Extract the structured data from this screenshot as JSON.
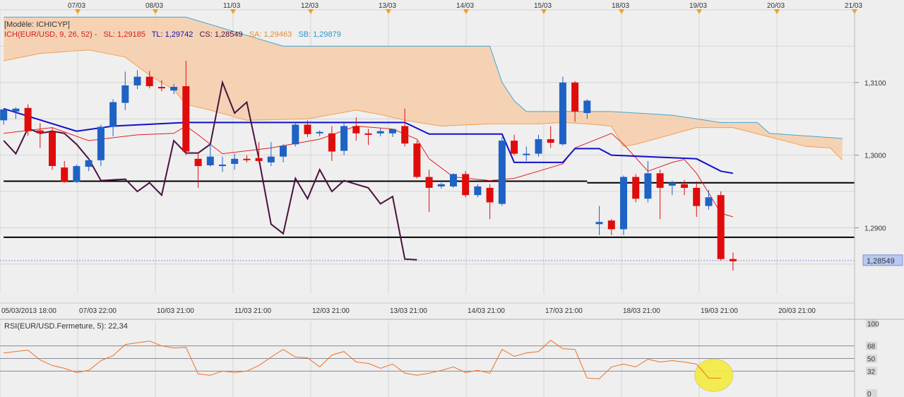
{
  "colors": {
    "background": "#eeeeee",
    "grid": "#d4d4d4",
    "bull": "#1e62c4",
    "bear": "#e00c0c",
    "tenkan": "#e02020",
    "kijun": "#1010cc",
    "chikou": "#4a1240",
    "span_a": "#f2a050",
    "span_b": "#40a8d0",
    "cloud": "#f5d0b0",
    "rsi": "#f07020",
    "highlight": "#f4ec40",
    "level": "#000000"
  },
  "header": {
    "model": "[Modèle: ICHICYP]",
    "ich": "ICH(EUR/USD, 9, 26, 52) -",
    "sl": "SL: 1,29185",
    "tl": "TL: 1,29742",
    "cs": "CS: 1,28549",
    "sa": "SA: 1,29463",
    "sb": "SB: 1,29879"
  },
  "top_dates": [
    "07/03",
    "08/03",
    "11/03",
    "12/03",
    "13/03",
    "14/03",
    "15/03",
    "18/03",
    "19/03",
    "20/03",
    "21/03"
  ],
  "bottom_dates": [
    "05/03/2013 18:00",
    "07/03 22:00",
    "10/03 21:00",
    "11/03 21:00",
    "12/03 21:00",
    "13/03 21:00",
    "14/03 21:00",
    "17/03 21:00",
    "18/03 21:00",
    "19/03 21:00",
    "20/03 21:00"
  ],
  "price_axis": {
    "ticks": [
      "1,3100",
      "1,3000",
      "1,2900"
    ],
    "last_price": "1,28549",
    "ylim": [
      1.281,
      1.32
    ]
  },
  "rsi": {
    "label": "RSI(EUR/USD.Fermeture, 5): 22,34",
    "ticks": [
      "100",
      "68",
      "50",
      "32",
      "0"
    ],
    "ylim": [
      0,
      100
    ]
  },
  "chart_data": {
    "type": "candlestick",
    "instrument": "EUR/USD",
    "x_slot_range": [
      -0.3,
      70
    ],
    "candles": [
      {
        "o": 1.3048,
        "h": 1.3064,
        "l": 1.3042,
        "c": 1.3063
      },
      {
        "o": 1.306,
        "h": 1.3066,
        "l": 1.305,
        "c": 1.3064
      },
      {
        "o": 1.3065,
        "h": 1.307,
        "l": 1.3027,
        "c": 1.3033
      },
      {
        "o": 1.3034,
        "h": 1.3044,
        "l": 1.301,
        "c": 1.303
      },
      {
        "o": 1.3032,
        "h": 1.3038,
        "l": 1.298,
        "c": 1.2985
      },
      {
        "o": 1.2983,
        "h": 1.2992,
        "l": 1.2962,
        "c": 1.2963
      },
      {
        "o": 1.2963,
        "h": 1.2987,
        "l": 1.2962,
        "c": 1.2985
      },
      {
        "o": 1.2984,
        "h": 1.2995,
        "l": 1.2978,
        "c": 1.2993
      },
      {
        "o": 1.2993,
        "h": 1.3042,
        "l": 1.2985,
        "c": 1.3039
      },
      {
        "o": 1.3039,
        "h": 1.3077,
        "l": 1.3026,
        "c": 1.3073
      },
      {
        "o": 1.3072,
        "h": 1.3115,
        "l": 1.3062,
        "c": 1.3096
      },
      {
        "o": 1.3096,
        "h": 1.3117,
        "l": 1.3091,
        "c": 1.3108
      },
      {
        "o": 1.3108,
        "h": 1.3116,
        "l": 1.3092,
        "c": 1.3095
      },
      {
        "o": 1.3094,
        "h": 1.3103,
        "l": 1.3088,
        "c": 1.3092
      },
      {
        "o": 1.3089,
        "h": 1.3098,
        "l": 1.3084,
        "c": 1.3094
      },
      {
        "o": 1.3095,
        "h": 1.313,
        "l": 1.3,
        "c": 1.3005
      },
      {
        "o": 1.2995,
        "h": 1.3004,
        "l": 1.2955,
        "c": 1.2985
      },
      {
        "o": 1.2986,
        "h": 1.3016,
        "l": 1.2984,
        "c": 1.2998
      },
      {
        "o": 1.2985,
        "h": 1.2998,
        "l": 1.2977,
        "c": 1.2987
      },
      {
        "o": 1.2988,
        "h": 1.3002,
        "l": 1.298,
        "c": 1.2995
      },
      {
        "o": 1.2995,
        "h": 1.3,
        "l": 1.299,
        "c": 1.2994
      },
      {
        "o": 1.2996,
        "h": 1.3018,
        "l": 1.299,
        "c": 1.2992
      },
      {
        "o": 1.299,
        "h": 1.3018,
        "l": 1.2985,
        "c": 1.2998
      },
      {
        "o": 1.2998,
        "h": 1.3015,
        "l": 1.299,
        "c": 1.3013
      },
      {
        "o": 1.3015,
        "h": 1.3045,
        "l": 1.3012,
        "c": 1.3042
      },
      {
        "o": 1.3042,
        "h": 1.3048,
        "l": 1.3025,
        "c": 1.3029
      },
      {
        "o": 1.303,
        "h": 1.3034,
        "l": 1.3026,
        "c": 1.3032
      },
      {
        "o": 1.303,
        "h": 1.304,
        "l": 1.2992,
        "c": 1.3005
      },
      {
        "o": 1.3006,
        "h": 1.3044,
        "l": 1.3,
        "c": 1.304
      },
      {
        "o": 1.304,
        "h": 1.3052,
        "l": 1.302,
        "c": 1.303
      },
      {
        "o": 1.303,
        "h": 1.3036,
        "l": 1.3014,
        "c": 1.3028
      },
      {
        "o": 1.303,
        "h": 1.3037,
        "l": 1.3026,
        "c": 1.3033
      },
      {
        "o": 1.303,
        "h": 1.3036,
        "l": 1.3025,
        "c": 1.3036
      },
      {
        "o": 1.304,
        "h": 1.3064,
        "l": 1.3012,
        "c": 1.3016
      },
      {
        "o": 1.3016,
        "h": 1.302,
        "l": 1.2968,
        "c": 1.297
      },
      {
        "o": 1.297,
        "h": 1.298,
        "l": 1.2922,
        "c": 1.2955
      },
      {
        "o": 1.2957,
        "h": 1.2962,
        "l": 1.2954,
        "c": 1.296
      },
      {
        "o": 1.2957,
        "h": 1.2975,
        "l": 1.2955,
        "c": 1.2974
      },
      {
        "o": 1.2974,
        "h": 1.2978,
        "l": 1.2942,
        "c": 1.2945
      },
      {
        "o": 1.2945,
        "h": 1.296,
        "l": 1.2942,
        "c": 1.2957
      },
      {
        "o": 1.2955,
        "h": 1.296,
        "l": 1.2912,
        "c": 1.2935
      },
      {
        "o": 1.2933,
        "h": 1.3025,
        "l": 1.293,
        "c": 1.302
      },
      {
        "o": 1.302,
        "h": 1.3028,
        "l": 1.3,
        "c": 1.3002
      },
      {
        "o": 1.3001,
        "h": 1.3012,
        "l": 1.2992,
        "c": 1.3002
      },
      {
        "o": 1.3002,
        "h": 1.3028,
        "l": 1.2998,
        "c": 1.3022
      },
      {
        "o": 1.3022,
        "h": 1.304,
        "l": 1.301,
        "c": 1.3017
      },
      {
        "o": 1.3015,
        "h": 1.3108,
        "l": 1.3013,
        "c": 1.31
      },
      {
        "o": 1.31,
        "h": 1.3102,
        "l": 1.3046,
        "c": 1.306
      },
      {
        "o": 1.3058,
        "h": 1.3077,
        "l": 1.305,
        "c": 1.3075
      },
      {
        "o": 1.2905,
        "h": 1.293,
        "l": 1.289,
        "c": 1.2908
      },
      {
        "o": 1.291,
        "h": 1.2912,
        "l": 1.289,
        "c": 1.2898
      },
      {
        "o": 1.2898,
        "h": 1.2972,
        "l": 1.289,
        "c": 1.297
      },
      {
        "o": 1.297,
        "h": 1.2974,
        "l": 1.2935,
        "c": 1.294
      },
      {
        "o": 1.294,
        "h": 1.2992,
        "l": 1.2935,
        "c": 1.2975
      },
      {
        "o": 1.2975,
        "h": 1.298,
        "l": 1.2912,
        "c": 1.2955
      },
      {
        "o": 1.2958,
        "h": 1.2965,
        "l": 1.2945,
        "c": 1.2962
      },
      {
        "o": 1.296,
        "h": 1.2966,
        "l": 1.2945,
        "c": 1.2955
      },
      {
        "o": 1.2955,
        "h": 1.2964,
        "l": 1.2915,
        "c": 1.293
      },
      {
        "o": 1.293,
        "h": 1.2952,
        "l": 1.2925,
        "c": 1.2942
      },
      {
        "o": 1.2945,
        "h": 1.295,
        "l": 1.2855,
        "c": 1.2857
      },
      {
        "o": 1.2857,
        "h": 1.2866,
        "l": 1.2841,
        "c": 1.2854
      }
    ],
    "tenkan_sen": [
      [
        0,
        1.303
      ],
      [
        4,
        1.3038
      ],
      [
        7,
        1.302
      ],
      [
        11,
        1.3028
      ],
      [
        14,
        1.303
      ],
      [
        15,
        1.304
      ],
      [
        16,
        1.3028
      ],
      [
        18,
        1.3002
      ],
      [
        22,
        1.301
      ],
      [
        26,
        1.3022
      ],
      [
        29,
        1.304
      ],
      [
        32,
        1.3036
      ],
      [
        34,
        1.3022
      ],
      [
        35,
        1.2995
      ],
      [
        37,
        1.297
      ],
      [
        40,
        1.2965
      ],
      [
        42,
        1.2968
      ],
      [
        46,
        1.2988
      ],
      [
        47,
        1.301
      ],
      [
        50,
        1.303
      ],
      [
        51,
        1.3015
      ],
      [
        53,
        1.2978
      ],
      [
        55,
        1.299
      ],
      [
        56,
        1.2994
      ],
      [
        57,
        1.2975
      ],
      [
        58,
        1.2948
      ],
      [
        59,
        1.292
      ],
      [
        60,
        1.2915
      ]
    ],
    "kijun_sen": [
      [
        0,
        1.3064
      ],
      [
        6,
        1.3033
      ],
      [
        9,
        1.304
      ],
      [
        15,
        1.3045
      ],
      [
        17,
        1.3045
      ],
      [
        33,
        1.3045
      ],
      [
        35,
        1.3029
      ],
      [
        41,
        1.3029
      ],
      [
        42,
        1.299
      ],
      [
        46,
        1.299
      ],
      [
        47,
        1.3009
      ],
      [
        49,
        1.3009
      ],
      [
        50,
        1.3
      ],
      [
        57,
        1.2995
      ],
      [
        59,
        1.2978
      ],
      [
        60,
        1.2975
      ]
    ],
    "chikou_span": [
      [
        0,
        1.302
      ],
      [
        1,
        1.3002
      ],
      [
        2,
        1.3037
      ],
      [
        3,
        1.303
      ],
      [
        4,
        1.3033
      ],
      [
        5,
        1.303
      ],
      [
        6,
        1.3015
      ],
      [
        7,
        1.2995
      ],
      [
        8,
        1.2965
      ],
      [
        9,
        1.2966
      ],
      [
        10,
        1.2967
      ],
      [
        11,
        1.295
      ],
      [
        12,
        1.2962
      ],
      [
        13,
        1.2945
      ],
      [
        14,
        1.302
      ],
      [
        15,
        1.3003
      ],
      [
        16,
        1.3003
      ],
      [
        17,
        1.3015
      ],
      [
        18,
        1.31
      ],
      [
        19,
        1.3058
      ],
      [
        20,
        1.3073
      ],
      [
        21,
        1.2995
      ],
      [
        22,
        1.2905
      ],
      [
        23,
        1.2892
      ],
      [
        24,
        1.2968
      ],
      [
        25,
        1.294
      ],
      [
        26,
        1.298
      ],
      [
        27,
        1.295
      ],
      [
        28,
        1.2965
      ],
      [
        29,
        1.296
      ],
      [
        30,
        1.2955
      ],
      [
        31,
        1.2933
      ],
      [
        32,
        1.2943
      ],
      [
        33,
        1.2857
      ],
      [
        34,
        1.2856
      ]
    ],
    "senkou_span_a": [
      [
        0,
        1.313
      ],
      [
        3,
        1.314
      ],
      [
        7,
        1.3145
      ],
      [
        10,
        1.3135
      ],
      [
        12,
        1.311
      ],
      [
        14,
        1.309
      ],
      [
        15,
        1.307
      ],
      [
        17,
        1.3062
      ],
      [
        20,
        1.3048
      ],
      [
        25,
        1.305
      ],
      [
        29,
        1.3062
      ],
      [
        31,
        1.3056
      ],
      [
        33,
        1.3048
      ],
      [
        36,
        1.304
      ],
      [
        40,
        1.3043
      ],
      [
        44,
        1.3043
      ],
      [
        46,
        1.3045
      ],
      [
        48,
        1.3043
      ],
      [
        50,
        1.304
      ],
      [
        51,
        1.3012
      ],
      [
        52,
        1.3015
      ],
      [
        57,
        1.3038
      ],
      [
        60,
        1.3038
      ],
      [
        63,
        1.3025
      ],
      [
        66,
        1.3012
      ],
      [
        68,
        1.301
      ],
      [
        69,
        1.2993
      ]
    ],
    "senkou_span_b": [
      [
        0,
        1.319
      ],
      [
        15,
        1.319
      ],
      [
        23,
        1.315
      ],
      [
        40,
        1.315
      ],
      [
        41,
        1.31
      ],
      [
        42,
        1.3075
      ],
      [
        43,
        1.306
      ],
      [
        50,
        1.306
      ],
      [
        55,
        1.3055
      ],
      [
        59,
        1.3045
      ],
      [
        62,
        1.3045
      ],
      [
        63,
        1.303
      ],
      [
        69,
        1.3023
      ]
    ],
    "levels": [
      {
        "from": 0,
        "to": 48,
        "y": 1.29642
      },
      {
        "from": 48,
        "to": 70,
        "y": 1.2962
      },
      {
        "from": 0,
        "to": 70,
        "y": 1.2887
      }
    ],
    "last_price_line": 1.28549,
    "rsi": [
      [
        0,
        58
      ],
      [
        2,
        62
      ],
      [
        3,
        48
      ],
      [
        4,
        40
      ],
      [
        5,
        36
      ],
      [
        6,
        30
      ],
      [
        7,
        33
      ],
      [
        8,
        47
      ],
      [
        9,
        54
      ],
      [
        10,
        70
      ],
      [
        12,
        75
      ],
      [
        13,
        68
      ],
      [
        14,
        65
      ],
      [
        15,
        66
      ],
      [
        16,
        28
      ],
      [
        17,
        26
      ],
      [
        18,
        32
      ],
      [
        19,
        30
      ],
      [
        20,
        32
      ],
      [
        21,
        40
      ],
      [
        22,
        52
      ],
      [
        23,
        63
      ],
      [
        24,
        52
      ],
      [
        25,
        51
      ],
      [
        26,
        38
      ],
      [
        27,
        55
      ],
      [
        28,
        60
      ],
      [
        29,
        45
      ],
      [
        30,
        43
      ],
      [
        31,
        36
      ],
      [
        32,
        42
      ],
      [
        33,
        29
      ],
      [
        34,
        26
      ],
      [
        35,
        29
      ],
      [
        36,
        33
      ],
      [
        37,
        38
      ],
      [
        38,
        30
      ],
      [
        39,
        33
      ],
      [
        40,
        29
      ],
      [
        41,
        63
      ],
      [
        42,
        53
      ],
      [
        43,
        58
      ],
      [
        44,
        60
      ],
      [
        45,
        76
      ],
      [
        46,
        64
      ],
      [
        47,
        63
      ],
      [
        48,
        22
      ],
      [
        49,
        21
      ],
      [
        50,
        38
      ],
      [
        51,
        42
      ],
      [
        52,
        38
      ],
      [
        53,
        49
      ],
      [
        54,
        45
      ],
      [
        55,
        47
      ],
      [
        56,
        45
      ],
      [
        57,
        42
      ],
      [
        58,
        22
      ],
      [
        59,
        22
      ]
    ]
  }
}
